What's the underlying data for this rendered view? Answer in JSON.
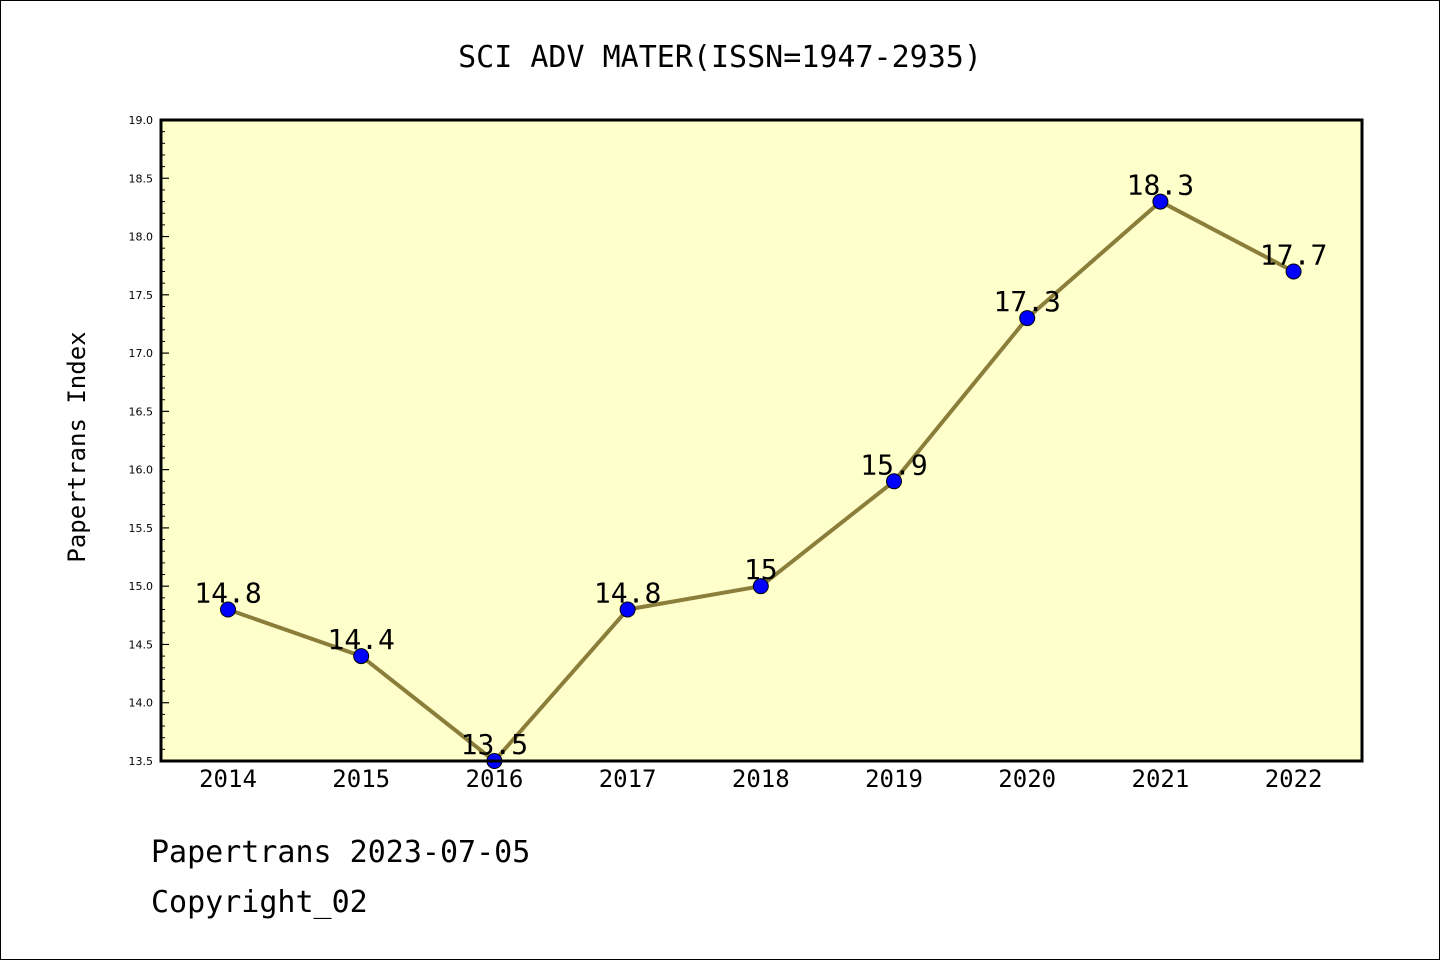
{
  "chart_data": {
    "type": "line",
    "title": "SCI ADV MATER(ISSN=1947-2935)",
    "xlabel": "",
    "ylabel": "Papertrans Index",
    "categories": [
      "2014",
      "2015",
      "2016",
      "2017",
      "2018",
      "2019",
      "2020",
      "2021",
      "2022"
    ],
    "values": [
      14.8,
      14.4,
      13.5,
      14.8,
      15.0,
      15.9,
      17.3,
      18.3,
      17.7
    ],
    "data_labels": [
      "14.8",
      "14.4",
      "13.5",
      "14.8",
      "15",
      "15.9",
      "17.3",
      "18.3",
      "17.7"
    ],
    "ylim": [
      13.5,
      19.0
    ],
    "yticks": [
      "13.5",
      "14.0",
      "14.5",
      "15.0",
      "15.5",
      "16.0",
      "16.5",
      "17.0",
      "17.5",
      "18.0",
      "18.5",
      "19.0"
    ],
    "grid": false,
    "legend": "none",
    "colors": {
      "plot_background": "#ffffcc",
      "line": "#8b7d3a",
      "marker": "#0000ff",
      "marker_edge": "#000000"
    }
  },
  "footer": {
    "line1": "Papertrans 2023-07-05",
    "line2": "Copyright_02"
  }
}
